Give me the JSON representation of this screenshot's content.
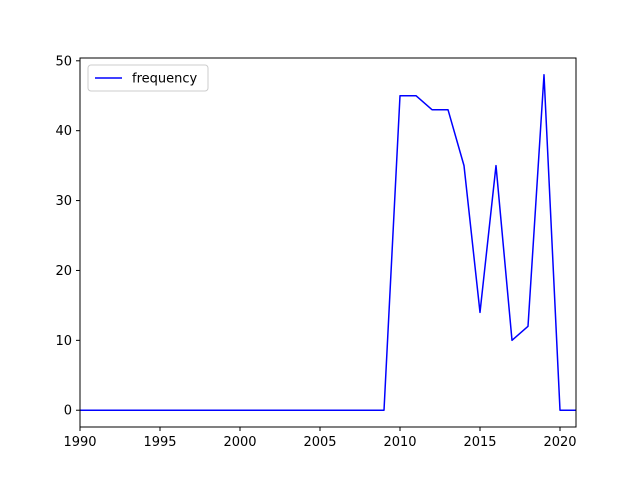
{
  "chart_data": {
    "type": "line",
    "title": "",
    "xlabel": "",
    "ylabel": "",
    "xlim": [
      1990,
      2021
    ],
    "ylim": [
      -2.4,
      50.4
    ],
    "x_ticks": [
      1990,
      1995,
      2000,
      2005,
      2010,
      2015,
      2020
    ],
    "y_ticks": [
      0,
      10,
      20,
      30,
      40,
      50
    ],
    "grid": false,
    "legend": {
      "position": "top-left"
    },
    "series": [
      {
        "name": "frequency",
        "color": "#0000ff",
        "x": [
          1990,
          1991,
          1992,
          1993,
          1994,
          1995,
          1996,
          1997,
          1998,
          1999,
          2000,
          2001,
          2002,
          2003,
          2004,
          2005,
          2006,
          2007,
          2008,
          2009,
          2010,
          2011,
          2012,
          2013,
          2014,
          2015,
          2016,
          2017,
          2018,
          2019,
          2020,
          2021
        ],
        "y": [
          0,
          0,
          0,
          0,
          0,
          0,
          0,
          0,
          0,
          0,
          0,
          0,
          0,
          0,
          0,
          0,
          0,
          0,
          0,
          0,
          45,
          45,
          43,
          43,
          35,
          14,
          35,
          10,
          12,
          48,
          0,
          0
        ]
      }
    ]
  }
}
